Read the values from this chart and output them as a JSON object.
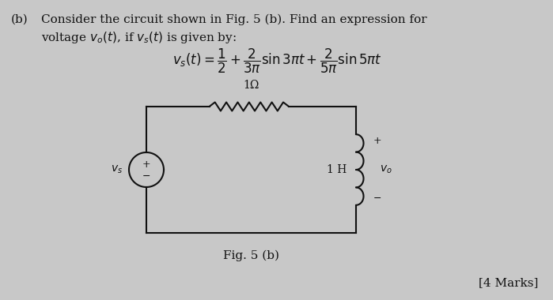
{
  "bg_color": "#c8c8c8",
  "text_color": "#111111",
  "title_part_b": "(b)",
  "line1": "Consider the circuit shown in Fig. 5 (b). Find an expression for",
  "line2": "voltage $v_o(t)$, if $v_s(t)$ is given by:",
  "equation": "$v_s(t) = \\dfrac{1}{2} + \\dfrac{2}{3\\pi}\\sin 3\\pi t + \\dfrac{2}{5\\pi}\\sin 5\\pi t$",
  "fig_caption": "Fig. 5 (b)",
  "marks": "[4 Marks]",
  "resistor_label": "1Ω",
  "inductor_label": "1 H",
  "source_label": "$v_s$",
  "vo_label": "$v_o$",
  "plus": "+",
  "minus": "−"
}
